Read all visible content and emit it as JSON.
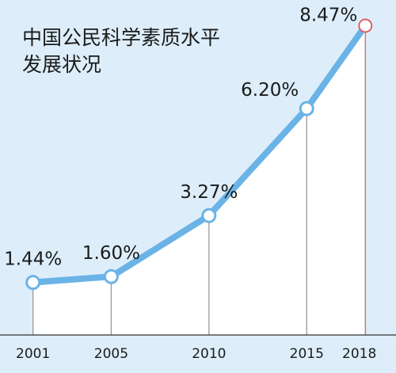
{
  "chart_data": {
    "type": "line",
    "title": [
      "中国公民科学素质水平",
      "发展状况"
    ],
    "xlabel": "",
    "ylabel": "",
    "categories": [
      "2001",
      "2005",
      "2010",
      "2015",
      "2018"
    ],
    "x": [
      2001,
      2005,
      2010,
      2015,
      2018
    ],
    "values": [
      1.44,
      1.6,
      3.27,
      6.2,
      8.47
    ],
    "data_labels": [
      "1.44%",
      "1.60%",
      "3.27%",
      "6.20%",
      "8.47%"
    ],
    "xlim": [
      2000,
      2019
    ],
    "ylim": [
      0,
      9
    ],
    "grid": false,
    "legend": "none",
    "colors": {
      "background": "#ddeefa",
      "area_fill": "#ffffff",
      "line": "#6bb3e6",
      "marker_stroke": "#6bb3e6",
      "highlight_marker_stroke": "#e06060",
      "highlight_drop_line": "#e06060",
      "drop_line": "#999999",
      "axis": "#333333",
      "text": "#1a1a1a"
    }
  }
}
